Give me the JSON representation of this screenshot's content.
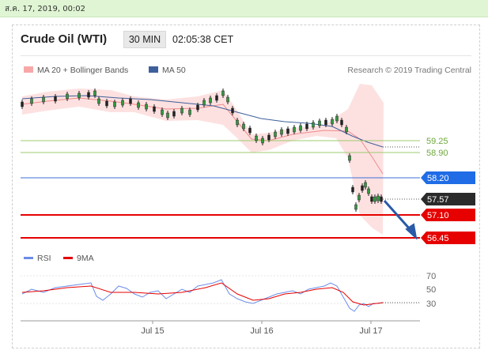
{
  "header": {
    "date_stamp": "ส.ค. 17, 2019, 00:02",
    "instrument": "Crude Oil (WTI)",
    "interval": "30 MIN",
    "time": "02:05:38 CET"
  },
  "legend": {
    "ma20": "MA 20 + Bollinger Bands",
    "ma50": "MA 50",
    "source": "Research © 2019 Trading Central",
    "rsi": "RSI",
    "ma9": "9MA"
  },
  "colors": {
    "bollinger_fill": "#fde1e1",
    "ma20": "#f08a8a",
    "ma50": "#3e5f9b",
    "green_level": "#9ccb6e",
    "blue_level": "#3d6fd6",
    "red_level": "#e60000",
    "current_price": "#333333",
    "rsi": "#6b8de8",
    "rsi_ma": "#e60000",
    "arrow": "#2a5aa8"
  },
  "chart_data": {
    "type": "candlestick",
    "x_ticks": [
      "Jul 15",
      "Jul 16",
      "Jul 17"
    ],
    "levels": [
      {
        "value": 59.25,
        "label": "59.25",
        "kind": "resistance-green"
      },
      {
        "value": 58.9,
        "label": "58.90",
        "kind": "resistance-green"
      },
      {
        "value": 58.2,
        "label": "58.20",
        "kind": "pivot-blue"
      },
      {
        "value": 57.57,
        "label": "57.57",
        "kind": "current-price"
      },
      {
        "value": 57.1,
        "label": "57.10",
        "kind": "support-red"
      },
      {
        "value": 56.45,
        "label": "56.45",
        "kind": "support-red"
      }
    ],
    "y_scale": {
      "min": 56.45,
      "max": 60.9
    },
    "forecast_arrow": {
      "from": 57.57,
      "to": 56.45
    },
    "rsi": {
      "ticks": [
        30,
        50,
        70
      ],
      "ylim": [
        20,
        80
      ],
      "last_value": 32
    }
  }
}
